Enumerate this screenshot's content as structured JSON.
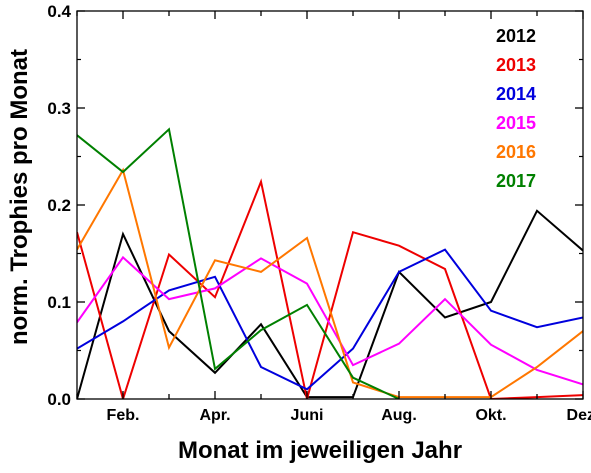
{
  "chart_data": {
    "type": "line",
    "xlabel": "Monat im jeweiligen Jahr",
    "ylabel": "norm. Trophies pro Monat",
    "ylim": [
      0,
      0.4
    ],
    "xlim": [
      1,
      12
    ],
    "yticks": [
      "0.0",
      "0.1",
      "0.2",
      "0.3",
      "0.4"
    ],
    "yticks_values": [
      0,
      0.1,
      0.2,
      0.3,
      0.4
    ],
    "xtick_labels": [
      {
        "month": 2,
        "label": "Feb."
      },
      {
        "month": 4,
        "label": "Apr."
      },
      {
        "month": 6,
        "label": "Juni"
      },
      {
        "month": 8,
        "label": "Aug."
      },
      {
        "month": 10,
        "label": "Okt."
      },
      {
        "month": 12,
        "label": "Dez."
      }
    ],
    "minor_x_ticks": [
      1,
      2,
      3,
      4,
      5,
      6,
      7,
      8,
      9,
      10,
      11,
      12
    ],
    "grid": false,
    "legend_position": "top-right",
    "months": [
      1,
      2,
      3,
      4,
      5,
      6,
      7,
      8,
      9,
      10,
      11,
      12
    ],
    "series": [
      {
        "name": "2012",
        "color": "#000000",
        "values": [
          0.0,
          0.17,
          0.07,
          0.027,
          0.077,
          0.002,
          0.002,
          0.131,
          0.084,
          0.1,
          0.194,
          0.153
        ]
      },
      {
        "name": "2013",
        "color": "#ee0000",
        "values": [
          0.172,
          0.0,
          0.149,
          0.105,
          0.224,
          0.0,
          0.172,
          0.158,
          0.134,
          0.0,
          0.002,
          0.004
        ]
      },
      {
        "name": "2014",
        "color": "#0000dd",
        "values": [
          0.052,
          0.08,
          0.112,
          0.126,
          0.033,
          0.01,
          0.052,
          0.131,
          0.154,
          0.091,
          0.074,
          0.084
        ]
      },
      {
        "name": "2015",
        "color": "#ff00ff",
        "values": [
          0.079,
          0.146,
          0.103,
          0.114,
          0.145,
          0.119,
          0.035,
          0.057,
          0.103,
          0.056,
          0.03,
          0.015
        ]
      },
      {
        "name": "2016",
        "color": "#ff7700",
        "values": [
          0.154,
          0.236,
          0.053,
          0.143,
          0.131,
          0.166,
          0.017,
          0.002,
          0.002,
          0.002,
          0.033,
          0.07
        ]
      },
      {
        "name": "2017",
        "color": "#008000",
        "values": [
          0.272,
          0.234,
          0.278,
          0.031,
          0.071,
          0.097,
          0.022,
          0.0
        ]
      }
    ]
  }
}
